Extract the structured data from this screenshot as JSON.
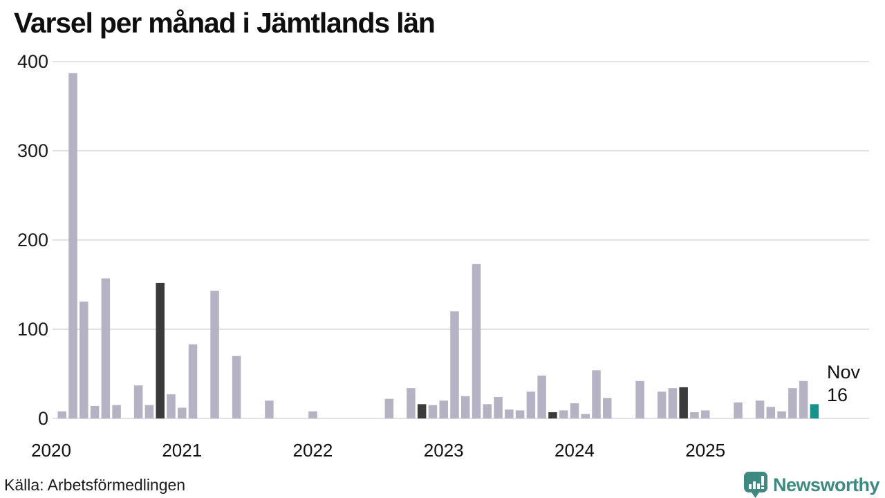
{
  "title": "Varsel per månad i Jämtlands län",
  "source": "Källa: Arbetsförmedlingen",
  "brand": {
    "name": "Newsworthy",
    "color": "#3E8A80"
  },
  "annotation": {
    "label": "Nov",
    "value": "16"
  },
  "colors": {
    "bar_default": "#B5B2C3",
    "bar_november": "#3B3B3B",
    "bar_current": "#12948A",
    "gridline": "#E1E1E6",
    "axis_text": "#191919",
    "title_text": "#0F0F0F"
  },
  "chart_data": {
    "type": "bar",
    "title": "Varsel per månad i Jämtlands län",
    "xlabel": "",
    "ylabel": "",
    "ylim": [
      0,
      400
    ],
    "y_ticks": [
      0,
      100,
      200,
      300,
      400
    ],
    "x_tick_labels": [
      "2020",
      "2021",
      "2022",
      "2023",
      "2024",
      "2025"
    ],
    "grid": true,
    "legend": false,
    "x_start": "2020-01",
    "x_end": "2025-11",
    "highlight_rule": "November bars dark, current month (Nov 2025) teal",
    "months": [
      "2020-01",
      "2020-02",
      "2020-03",
      "2020-04",
      "2020-05",
      "2020-06",
      "2020-07",
      "2020-08",
      "2020-09",
      "2020-10",
      "2020-11",
      "2020-12",
      "2021-01",
      "2021-02",
      "2021-03",
      "2021-04",
      "2021-05",
      "2021-06",
      "2021-07",
      "2021-08",
      "2021-09",
      "2021-10",
      "2021-11",
      "2021-12",
      "2022-01",
      "2022-02",
      "2022-03",
      "2022-04",
      "2022-05",
      "2022-06",
      "2022-07",
      "2022-08",
      "2022-09",
      "2022-10",
      "2022-11",
      "2022-12",
      "2023-01",
      "2023-02",
      "2023-03",
      "2023-04",
      "2023-05",
      "2023-06",
      "2023-07",
      "2023-08",
      "2023-09",
      "2023-10",
      "2023-11",
      "2023-12",
      "2024-01",
      "2024-02",
      "2024-03",
      "2024-04",
      "2024-05",
      "2024-06",
      "2024-07",
      "2024-08",
      "2024-09",
      "2024-10",
      "2024-11",
      "2024-12",
      "2025-01",
      "2025-02",
      "2025-03",
      "2025-04",
      "2025-05",
      "2025-06",
      "2025-07",
      "2025-08",
      "2025-09",
      "2025-10",
      "2025-11"
    ],
    "values": [
      0,
      8,
      387,
      131,
      14,
      157,
      15,
      0,
      37,
      15,
      152,
      27,
      12,
      83,
      0,
      143,
      0,
      70,
      0,
      0,
      20,
      0,
      0,
      0,
      8,
      0,
      0,
      0,
      0,
      0,
      0,
      22,
      0,
      34,
      16,
      15,
      20,
      120,
      25,
      173,
      16,
      24,
      10,
      9,
      30,
      48,
      7,
      9,
      17,
      5,
      54,
      23,
      0,
      0,
      42,
      0,
      30,
      34,
      35,
      7,
      9,
      0,
      0,
      18,
      0,
      20,
      13,
      8,
      34,
      42,
      16
    ]
  }
}
